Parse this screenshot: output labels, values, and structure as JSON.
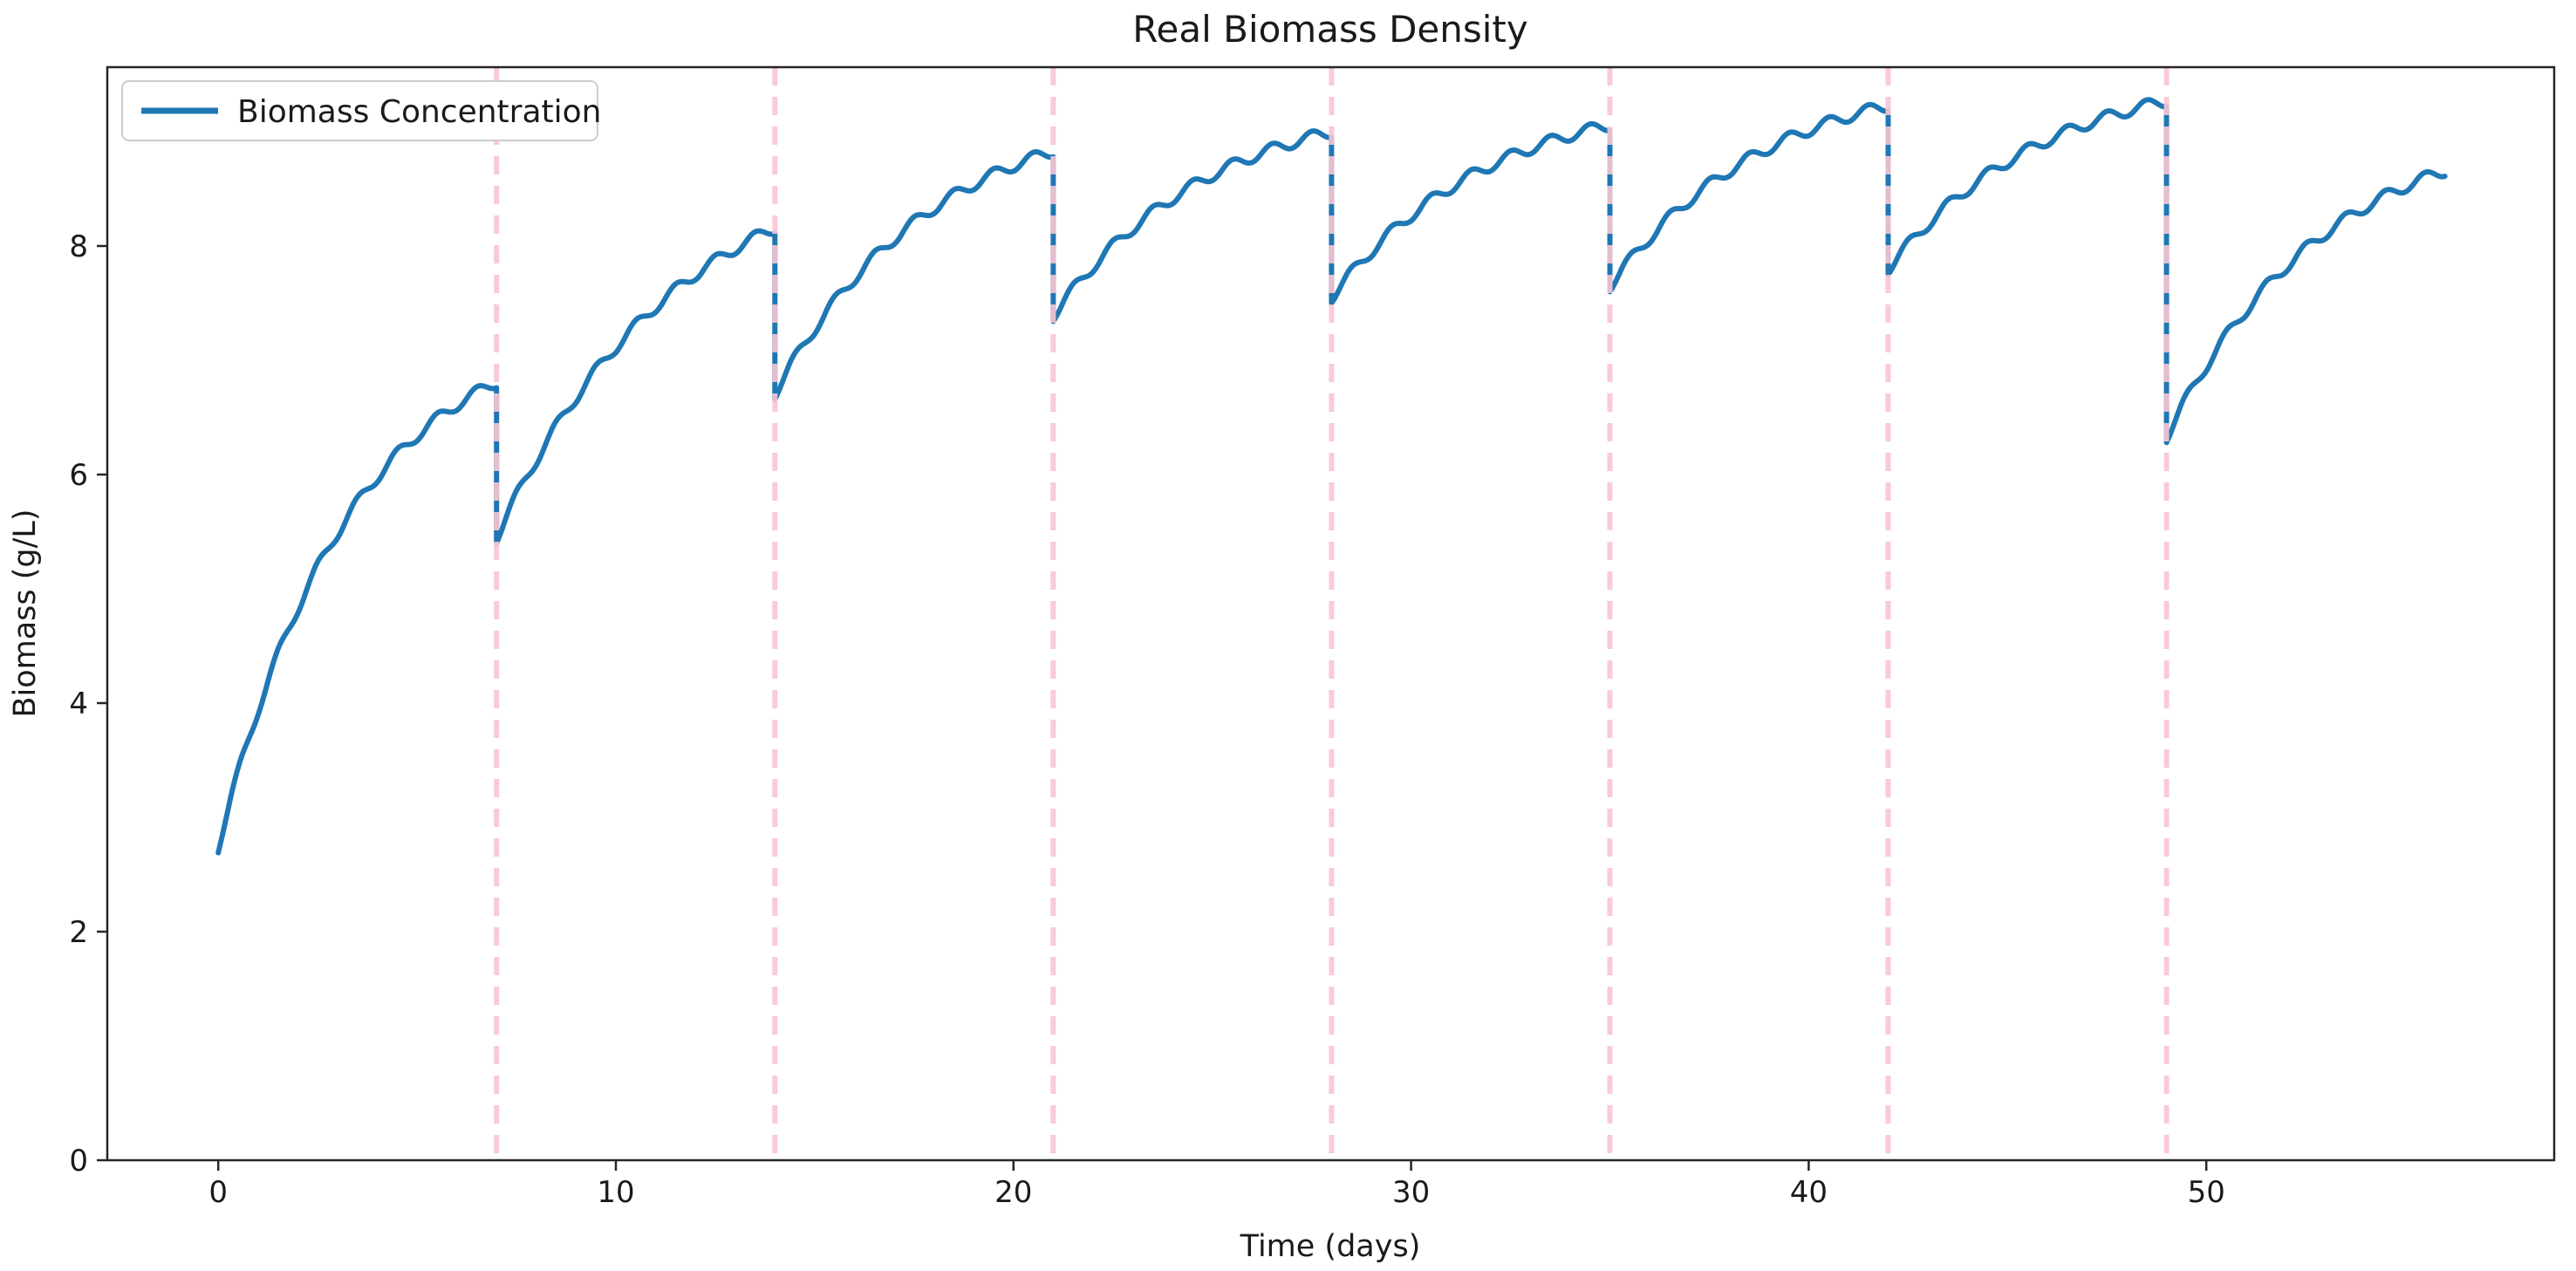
{
  "figure": {
    "background": "#ffffff",
    "axis_color": "#1a1a1a",
    "spine_color": "#262626"
  },
  "chart_data": {
    "type": "line",
    "title": "Real Biomass Density",
    "xlabel": "Time (days)",
    "ylabel": "Biomass (g/L)",
    "xlim": [
      -2.79,
      58.75
    ],
    "ylim": [
      0,
      9.565
    ],
    "xticks": [
      0,
      10,
      20,
      30,
      40,
      50
    ],
    "yticks": [
      0,
      2,
      4,
      6,
      8
    ],
    "grid": false,
    "legend": {
      "position": "upper-left",
      "entries": [
        {
          "label": "Biomass Concentration",
          "color": "#1f77b4"
        }
      ]
    },
    "vlines": {
      "meaning": "dilution events",
      "days": [
        7,
        14,
        21,
        28,
        35,
        42,
        49
      ],
      "color": "#f9c4d1",
      "style": "dashed",
      "width": 6,
      "opacity": 0.9
    },
    "series": [
      {
        "name": "Biomass Concentration",
        "color": "#1f77b4",
        "line_width": 6,
        "ripple": {
          "amplitude": 0.05,
          "period_days": 1
        },
        "sample_step_days": 0.05,
        "cycles": [
          {
            "start_day": 0,
            "end_day": 7,
            "start_value": 2.69,
            "end_value": 6.76,
            "k": 0.3
          },
          {
            "start_day": 7,
            "end_day": 14,
            "start_value": 5.4,
            "end_value": 8.11,
            "k": 0.22
          },
          {
            "start_day": 14,
            "end_day": 21,
            "start_value": 6.66,
            "end_value": 8.78,
            "k": 0.25
          },
          {
            "start_day": 21,
            "end_day": 28,
            "start_value": 7.34,
            "end_value": 8.95,
            "k": 0.25
          },
          {
            "start_day": 28,
            "end_day": 35,
            "start_value": 7.5,
            "end_value": 9.01,
            "k": 0.25
          },
          {
            "start_day": 35,
            "end_day": 42,
            "start_value": 7.6,
            "end_value": 9.18,
            "k": 0.25
          },
          {
            "start_day": 42,
            "end_day": 49,
            "start_value": 7.75,
            "end_value": 9.22,
            "k": 0.25
          },
          {
            "start_day": 49,
            "end_day": 56,
            "start_value": 6.28,
            "end_value": 8.61,
            "k": 0.25
          }
        ],
        "key_points": {
          "start": [
            0,
            2.69
          ],
          "peaks_at_dilution": [
            [
              7,
              6.76
            ],
            [
              14,
              8.11
            ],
            [
              21,
              8.78
            ],
            [
              28,
              8.95
            ],
            [
              35,
              9.01
            ],
            [
              42,
              9.18
            ],
            [
              49,
              9.22
            ]
          ],
          "post_dilution_values": [
            [
              7,
              5.4
            ],
            [
              14,
              6.66
            ],
            [
              21,
              7.34
            ],
            [
              28,
              7.5
            ],
            [
              35,
              7.6
            ],
            [
              42,
              7.75
            ],
            [
              49,
              6.28
            ]
          ],
          "end": [
            56,
            8.61
          ]
        }
      }
    ]
  }
}
